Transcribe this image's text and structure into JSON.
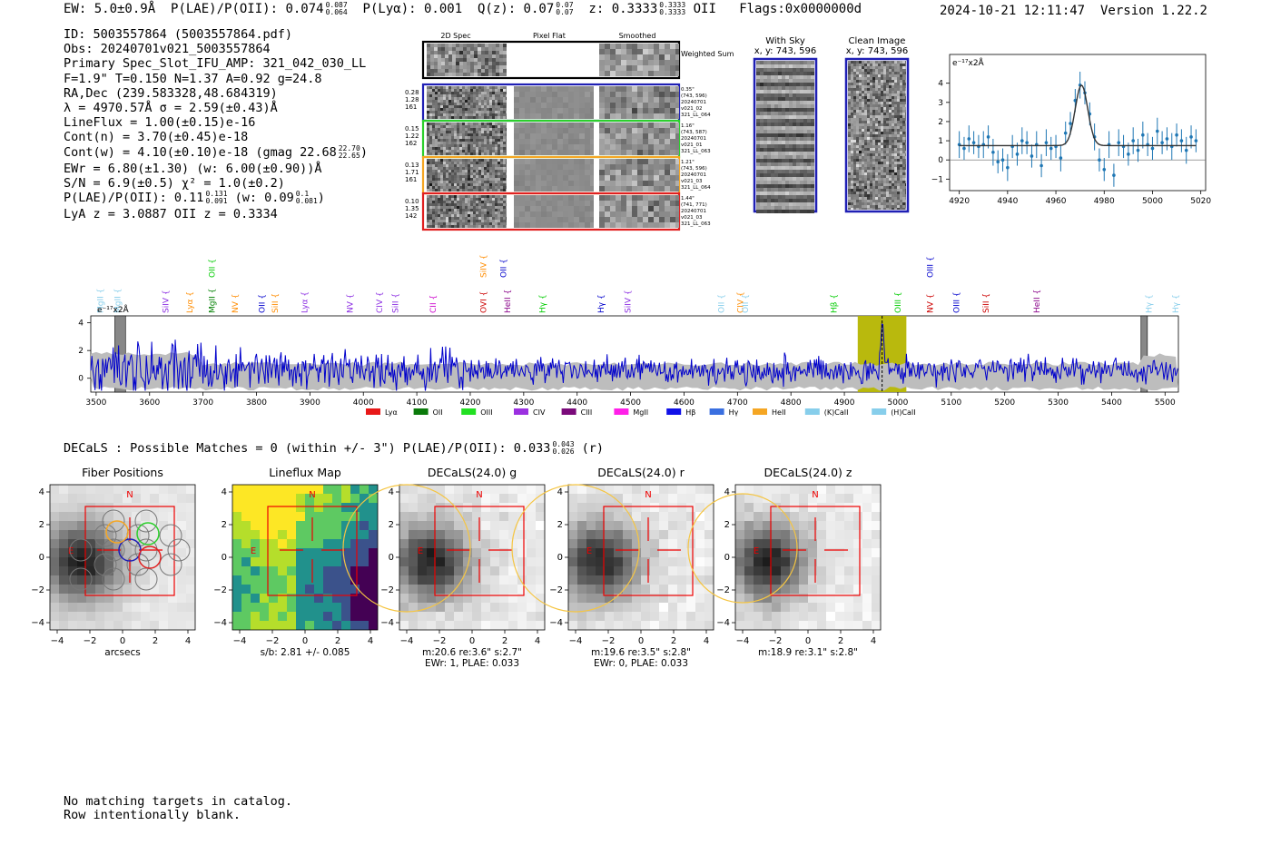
{
  "header": {
    "ew": "EW: 5.0±0.9Å",
    "plae_label": "P(LAE)/P(OII): 0.074",
    "plae_hi": "0.087",
    "plae_lo": "0.064",
    "plya": "P(Lyα): 0.001",
    "qz_label": "Q(z): 0.07",
    "qz_hi": "0.07",
    "qz_lo": "0.07",
    "z_label": "z: 0.3333",
    "z_hi": "0.3333",
    "z_lo": "0.3333",
    "z_line": "OII",
    "flags": "Flags:0x0000000d",
    "datetime": "2024-10-21 12:11:47",
    "version": "Version 1.22.2"
  },
  "info": {
    "id": "ID: 5003557864 (5003557864.pdf)",
    "obs": "Obs: 20240701v021_5003557864",
    "slot": "Primary Spec_Slot_IFU_AMP: 321_042_030_LL",
    "params": "F=1.9\"  T=0.150  N=1.37  A=0.92  g=24.8",
    "radec": "RA,Dec (239.583328,48.684319)",
    "lambda": "λ = 4970.57Å  σ = 2.59(±0.43)Å",
    "lineflux": "LineFlux = 1.00(±0.15)e-16",
    "contn": "Cont(n) = 3.70(±0.45)e-18",
    "contw": "Cont(w) = 4.10(±0.10)e-18 (gmag 22.68",
    "contw_hi": "22.70",
    "contw_lo": "22.65",
    "contw_end": ")",
    "ewr": "EWr = 6.80(±1.30) (w: 6.00(±0.90))Å",
    "sn": "S/N = 6.9(±0.5)  χ² = 1.0(±0.2)",
    "plae": "P(LAE)/P(OII): 0.11",
    "plae_hi": "0.131",
    "plae_lo": "0.091",
    "plae_w": "(w: 0.09",
    "plae_w_hi": "0.1",
    "plae_w_lo": "0.081",
    "plae_end": ")",
    "lyaz": "LyA z = 3.0887  OII z = 0.3334"
  },
  "cutouts": {
    "col_titles": [
      "2D Spec",
      "Pixel Flat",
      "Smoothed"
    ],
    "weighted_label": "Weighted Sum",
    "rows": [
      {
        "left": [
          "0.28",
          "1.28",
          "161"
        ],
        "right": [
          "0.35\"",
          "(743, 596)",
          "20240701",
          "v021_02",
          "321_LL_064"
        ],
        "color": "#1f1fb4"
      },
      {
        "left": [
          "0.15",
          "1.22",
          "162"
        ],
        "right": [
          "1.16\"",
          "(743, 587)",
          "20240701",
          "v021_01",
          "321_LL_063"
        ],
        "color": "#2ccf2c"
      },
      {
        "left": [
          "0.13",
          "1.71",
          "161"
        ],
        "right": [
          "1.21\"",
          "(743, 596)",
          "20240701",
          "v021_03",
          "321_LL_064"
        ],
        "color": "#f5a623"
      },
      {
        "left": [
          "0.10",
          "1.35",
          "142"
        ],
        "right": [
          "1.44\"",
          "(741, 771)",
          "20240701",
          "v021_03",
          "321_LL_063"
        ],
        "color": "#e02020"
      }
    ]
  },
  "sky": {
    "with_sky_title": "With Sky",
    "with_sky_coord": "x, y: 743, 596",
    "clean_title": "Clean Image",
    "clean_coord": "x, y: 743, 596"
  },
  "fit_chart": {
    "type": "scatter",
    "ylabel": "e⁻¹⁷x2Å",
    "xlim": [
      4916,
      5022
    ],
    "ylim": [
      -1.6,
      5.5
    ],
    "xticks": [
      4920,
      4940,
      4960,
      4980,
      5000,
      5020
    ],
    "yticks": [
      -1,
      0,
      1,
      2,
      3,
      4
    ],
    "x": [
      4920,
      4922,
      4924,
      4926,
      4928,
      4930,
      4932,
      4934,
      4936,
      4938,
      4940,
      4942,
      4944,
      4946,
      4948,
      4950,
      4952,
      4954,
      4956,
      4958,
      4960,
      4962,
      4964,
      4966,
      4968,
      4970,
      4972,
      4974,
      4976,
      4978,
      4980,
      4982,
      4984,
      4986,
      4988,
      4990,
      4992,
      4994,
      4996,
      4998,
      5000,
      5002,
      5004,
      5006,
      5008,
      5010,
      5012,
      5014,
      5016,
      5018
    ],
    "y": [
      0.8,
      0.6,
      1.1,
      0.9,
      0.7,
      0.8,
      1.2,
      0.4,
      -0.1,
      0.0,
      -0.4,
      0.7,
      0.3,
      1.0,
      0.9,
      0.2,
      0.8,
      -0.3,
      0.9,
      0.6,
      0.7,
      0.1,
      1.4,
      1.9,
      3.1,
      3.9,
      3.5,
      2.4,
      1.2,
      0.0,
      -0.5,
      0.8,
      -0.8,
      0.9,
      0.7,
      0.3,
      1.0,
      0.5,
      1.3,
      0.8,
      0.6,
      1.5,
      0.9,
      1.1,
      0.7,
      1.3,
      1.0,
      0.5,
      1.2,
      1.0
    ],
    "err": [
      0.7,
      0.6,
      0.7,
      0.6,
      0.6,
      0.7,
      0.6,
      0.7,
      0.6,
      0.6,
      0.7,
      0.6,
      0.6,
      0.7,
      0.6,
      0.6,
      0.7,
      0.6,
      0.7,
      0.6,
      0.6,
      0.7,
      0.6,
      0.6,
      0.6,
      0.7,
      0.6,
      0.6,
      0.7,
      0.6,
      0.6,
      0.7,
      0.6,
      0.7,
      0.6,
      0.6,
      0.7,
      0.6,
      0.7,
      0.6,
      0.6,
      0.7,
      0.6,
      0.6,
      0.7,
      0.6,
      0.6,
      0.7,
      0.6,
      0.6
    ],
    "fit": {
      "continuum": 0.75,
      "amplitude": 3.15,
      "center": 4970.6,
      "sigma": 2.59
    }
  },
  "lines_chart": {
    "type": "line",
    "ylabel": "e⁻¹⁷x2Å",
    "xlim": [
      3490,
      5525
    ],
    "ylim": [
      -1.0,
      4.5
    ],
    "xticks": [
      3500,
      3600,
      3700,
      3800,
      3900,
      4000,
      4100,
      4200,
      4300,
      4400,
      4500,
      4600,
      4700,
      4800,
      4900,
      5000,
      5100,
      5200,
      5300,
      5400,
      5500
    ],
    "yticks": [
      0,
      2,
      4
    ],
    "highlight_range": [
      4925,
      5016
    ],
    "vline": 4970.6,
    "masked": [
      [
        3535,
        3555
      ],
      [
        5455,
        5467
      ]
    ],
    "line_labels": [
      {
        "x": 3508,
        "text": "MgII",
        "color": "#87ceeb",
        "row": 2
      },
      {
        "x": 3540,
        "text": "MgII",
        "color": "#87ceeb",
        "row": 2
      },
      {
        "x": 3630,
        "text": "SiIV",
        "color": "#8a2be2",
        "row": 2
      },
      {
        "x": 3675,
        "text": "Lyα",
        "color": "#ff8c00",
        "row": 2
      },
      {
        "x": 3717,
        "text": "MgII",
        "color": "#008000",
        "row": 2
      },
      {
        "x": 3717,
        "text": "OII",
        "color": "#00cc00",
        "row": 0
      },
      {
        "x": 3760,
        "text": "NV",
        "color": "#ff8c00",
        "row": 2
      },
      {
        "x": 3810,
        "text": "OII",
        "color": "#0000cc",
        "row": 2
      },
      {
        "x": 3835,
        "text": "SiII",
        "color": "#ff8c00",
        "row": 2
      },
      {
        "x": 3890,
        "text": "Lyα",
        "color": "#8a2be2",
        "row": 2
      },
      {
        "x": 3975,
        "text": "NV",
        "color": "#8a2be2",
        "row": 2
      },
      {
        "x": 4030,
        "text": "CIV",
        "color": "#8a2be2",
        "row": 2
      },
      {
        "x": 4060,
        "text": "SiII",
        "color": "#8a2be2",
        "row": 2
      },
      {
        "x": 4130,
        "text": "CII",
        "color": "#cc00cc",
        "row": 2
      },
      {
        "x": 4225,
        "text": "OVI",
        "color": "#cc0000",
        "row": 2
      },
      {
        "x": 4225,
        "text": "SiIV",
        "color": "#ff8c00",
        "row": 0
      },
      {
        "x": 4262,
        "text": "OII",
        "color": "#0000cc",
        "row": 0
      },
      {
        "x": 4270,
        "text": "HeII",
        "color": "#880088",
        "row": 2
      },
      {
        "x": 4335,
        "text": "Hγ",
        "color": "#00cc00",
        "row": 2
      },
      {
        "x": 4445,
        "text": "Hγ",
        "color": "#0000cc",
        "row": 2
      },
      {
        "x": 4495,
        "text": "SiIV",
        "color": "#8a2be2",
        "row": 2
      },
      {
        "x": 4670,
        "text": "OII",
        "color": "#87ceeb",
        "row": 2
      },
      {
        "x": 4705,
        "text": "CIV",
        "color": "#ff8c00",
        "row": 2
      },
      {
        "x": 4715,
        "text": "OII",
        "color": "#87ceeb",
        "row": 2
      },
      {
        "x": 4880,
        "text": "Hβ",
        "color": "#00cc00",
        "row": 2
      },
      {
        "x": 5000,
        "text": "OIII",
        "color": "#00cc00",
        "row": 2
      },
      {
        "x": 5060,
        "text": "OIII",
        "color": "#0000cc",
        "row": 0
      },
      {
        "x": 5060,
        "text": "NV",
        "color": "#cc0000",
        "row": 2
      },
      {
        "x": 5110,
        "text": "OIII",
        "color": "#0000cc",
        "row": 2
      },
      {
        "x": 5165,
        "text": "SiII",
        "color": "#cc0000",
        "row": 2
      },
      {
        "x": 5260,
        "text": "HeII",
        "color": "#880088",
        "row": 2
      },
      {
        "x": 5470,
        "text": "Hγ",
        "color": "#87ceeb",
        "row": 2
      },
      {
        "x": 5520,
        "text": "Hγ",
        "color": "#87ceeb",
        "row": 2
      }
    ]
  },
  "legend": [
    {
      "label": "Lyα",
      "color": "#e81818"
    },
    {
      "label": "OII",
      "color": "#0a7a0a"
    },
    {
      "label": "OIII",
      "color": "#22e022"
    },
    {
      "label": "CIV",
      "color": "#9b30e0"
    },
    {
      "label": "CIII",
      "color": "#7a0a7a"
    },
    {
      "label": "MgII",
      "color": "#ff1fe8"
    },
    {
      "label": "Hβ",
      "color": "#1010e8"
    },
    {
      "label": "Hγ",
      "color": "#3a6fe0"
    },
    {
      "label": "HeII",
      "color": "#f5a623"
    },
    {
      "label": "(K)CaII",
      "color": "#87ceeb"
    },
    {
      "label": "(H)CaII",
      "color": "#87ceeb"
    }
  ],
  "decals": {
    "header": "DECaLS : Possible Matches = 0 (within +/- 3\")  P(LAE)/P(OII): 0.033",
    "header_hi": "0.043",
    "header_lo": "0.026",
    "header_band": "(r)",
    "compass_n": "N",
    "compass_e": "E",
    "ticks": [
      "−4",
      "−2",
      "0",
      "2",
      "4"
    ],
    "panels": [
      {
        "title": "Fiber Positions",
        "caption1": "arcsecs",
        "caption2": ""
      },
      {
        "title": "Lineflux Map",
        "caption1": "s/b: 2.81 +/- 0.085",
        "caption2": ""
      },
      {
        "title": "DECaLS(24.0) g",
        "caption1": "m:20.6  re:3.6\"  s:2.7\"",
        "caption2": "EWr: 1, PLAE: 0.033"
      },
      {
        "title": "DECaLS(24.0) r",
        "caption1": "m:19.6  re:3.5\"  s:2.8\"",
        "caption2": "EWr: 0, PLAE: 0.033"
      },
      {
        "title": "DECaLS(24.0) z",
        "caption1": "m:18.9  re:3.1\"  s:2.8\"",
        "caption2": ""
      }
    ]
  },
  "footer": {
    "line1": "No matching targets in catalog.",
    "line2": "Row intentionally blank."
  }
}
